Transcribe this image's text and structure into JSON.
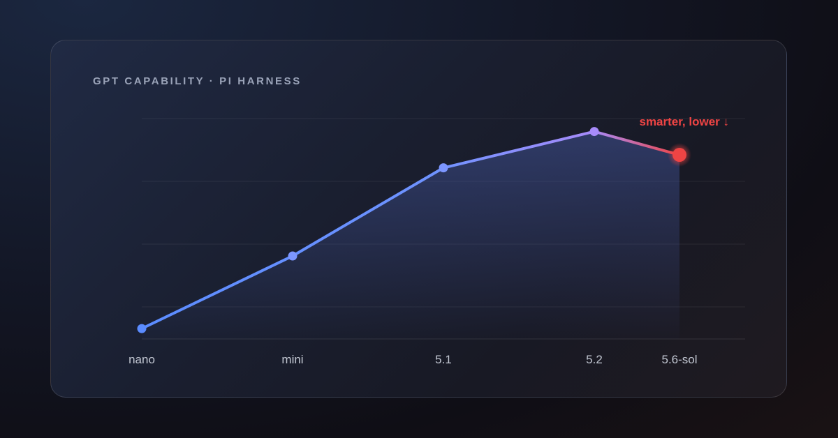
{
  "chart_data": {
    "type": "line",
    "title": "GPT CAPABILITY · PI HARNESS",
    "categories": [
      "nano",
      "mini",
      "5.1",
      "5.2",
      "5.6-sol"
    ],
    "values": [
      4,
      32,
      66,
      80,
      71
    ],
    "ylim": [
      0,
      85
    ],
    "grid": true,
    "annotation": {
      "text": "smarter, lower ↓",
      "point_index": 4
    },
    "colors": {
      "line": "#5b8cff",
      "peak": "#a78bfa",
      "highlight": "#ef4444"
    }
  }
}
